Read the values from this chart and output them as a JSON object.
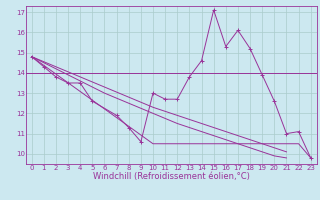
{
  "xlabel": "Windchill (Refroidissement éolien,°C)",
  "bg_color": "#cce8f0",
  "line_color": "#993399",
  "grid_color": "#aacccc",
  "x": [
    0,
    1,
    2,
    3,
    4,
    5,
    6,
    7,
    8,
    9,
    10,
    11,
    12,
    13,
    14,
    15,
    16,
    17,
    18,
    19,
    20,
    21,
    22,
    23
  ],
  "series1": [
    14.8,
    14.3,
    13.8,
    13.5,
    13.5,
    12.6,
    null,
    11.9,
    11.3,
    10.6,
    13.0,
    12.7,
    12.7,
    13.8,
    14.6,
    17.1,
    15.3,
    16.1,
    15.2,
    13.9,
    12.6,
    11.0,
    11.1,
    9.8
  ],
  "linear1": [
    14.8,
    14.37,
    13.94,
    13.51,
    13.08,
    12.65,
    12.22,
    11.79,
    11.36,
    10.93,
    10.5,
    10.5,
    10.5,
    10.5,
    10.5,
    10.5,
    10.5,
    10.5,
    10.5,
    10.5,
    10.5,
    10.5,
    10.5,
    9.8
  ],
  "linear2": [
    14.8,
    14.5,
    14.2,
    13.9,
    13.6,
    13.3,
    13.0,
    12.75,
    12.5,
    12.25,
    12.0,
    11.75,
    11.5,
    11.3,
    11.1,
    10.9,
    10.7,
    10.5,
    10.3,
    10.1,
    9.9,
    9.8,
    null,
    null
  ],
  "linear3": [
    14.8,
    14.55,
    14.3,
    14.05,
    13.8,
    13.55,
    13.3,
    13.05,
    12.8,
    12.55,
    12.3,
    12.1,
    11.9,
    11.7,
    11.5,
    11.3,
    11.1,
    10.9,
    10.7,
    10.5,
    10.3,
    10.1,
    null,
    null
  ],
  "horizontal_y": 14.0,
  "ylim": [
    9.5,
    17.3
  ],
  "xlim": [
    -0.5,
    23.5
  ],
  "yticks": [
    10,
    11,
    12,
    13,
    14,
    15,
    16,
    17
  ],
  "xticks": [
    0,
    1,
    2,
    3,
    4,
    5,
    6,
    7,
    8,
    9,
    10,
    11,
    12,
    13,
    14,
    15,
    16,
    17,
    18,
    19,
    20,
    21,
    22,
    23
  ],
  "tick_fontsize": 5.0,
  "label_fontsize": 6.0
}
